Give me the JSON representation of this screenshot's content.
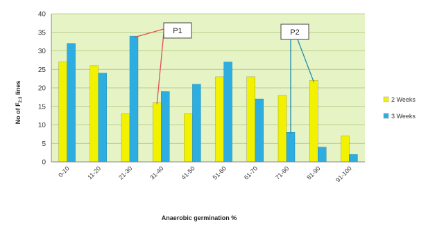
{
  "chart_data": {
    "type": "bar",
    "title": "",
    "xlabel": "Anaerobic germination %",
    "ylabel": "No of F2:3 lines",
    "ylabel_parts": {
      "main": "No of F",
      "sub": "2:3",
      "tail": " lines"
    },
    "ylim": [
      0,
      40
    ],
    "yticks": [
      0,
      5,
      10,
      15,
      20,
      25,
      30,
      35,
      40
    ],
    "grid": true,
    "legend_placement": "right",
    "categories": [
      "0-10",
      "11-20",
      "21-30",
      "31-40",
      "41-50",
      "51-60",
      "61-70",
      "71-80",
      "81-90",
      "91-100"
    ],
    "series": [
      {
        "name": "2 Weeks",
        "color": "#f2f200",
        "values": [
          27,
          26,
          13,
          16,
          13,
          23,
          23,
          18,
          22,
          7
        ]
      },
      {
        "name": "3 Weeks",
        "color": "#2eaee0",
        "values": [
          32,
          24,
          34,
          19,
          21,
          27,
          17,
          8,
          4,
          2
        ]
      }
    ],
    "plot_background": "#e6f3c4",
    "annotations": [
      {
        "label": "P1",
        "targets": [
          {
            "category": "21-30",
            "series": 1,
            "value": 34
          },
          {
            "category": "31-40",
            "series": 0,
            "value": 16
          }
        ]
      },
      {
        "label": "P2",
        "targets": [
          {
            "category": "71-80",
            "series": 1,
            "value": 8
          },
          {
            "category": "81-90",
            "series": 0,
            "value": 22
          }
        ]
      }
    ],
    "annotation_line_colors": [
      "#e05050",
      "#1e8bb0"
    ]
  }
}
